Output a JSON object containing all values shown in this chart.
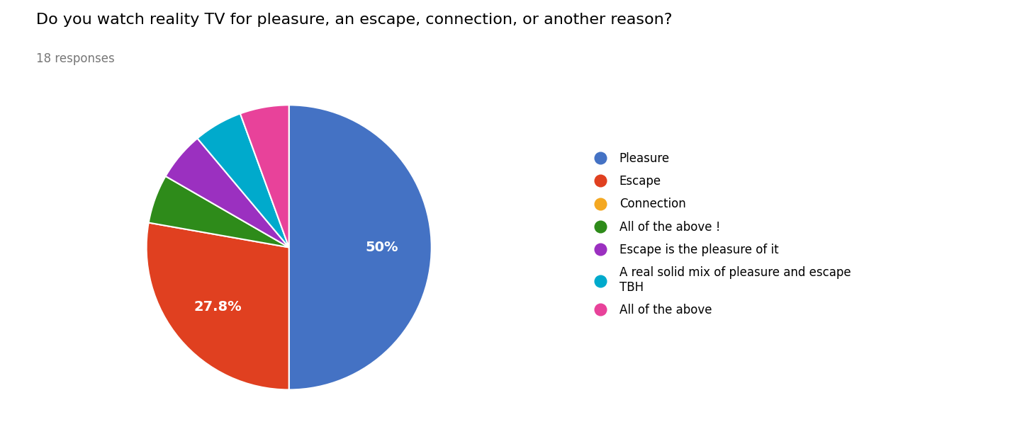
{
  "title": "Do you watch reality TV for pleasure, an escape, connection, or another reason?",
  "subtitle": "18 responses",
  "labels": [
    "Pleasure",
    "Escape",
    "Connection",
    "All of the above !",
    "Escape is the pleasure of it",
    "A real solid mix of pleasure and escape\nTBH",
    "All of the above"
  ],
  "values": [
    9,
    5,
    0,
    1,
    1,
    1,
    1
  ],
  "colors": [
    "#4472C4",
    "#E04020",
    "#F4A822",
    "#2E8B1A",
    "#9B30C0",
    "#00AACC",
    "#E8429A"
  ],
  "background_color": "#ffffff",
  "title_fontsize": 16,
  "subtitle_fontsize": 12,
  "legend_fontsize": 12
}
